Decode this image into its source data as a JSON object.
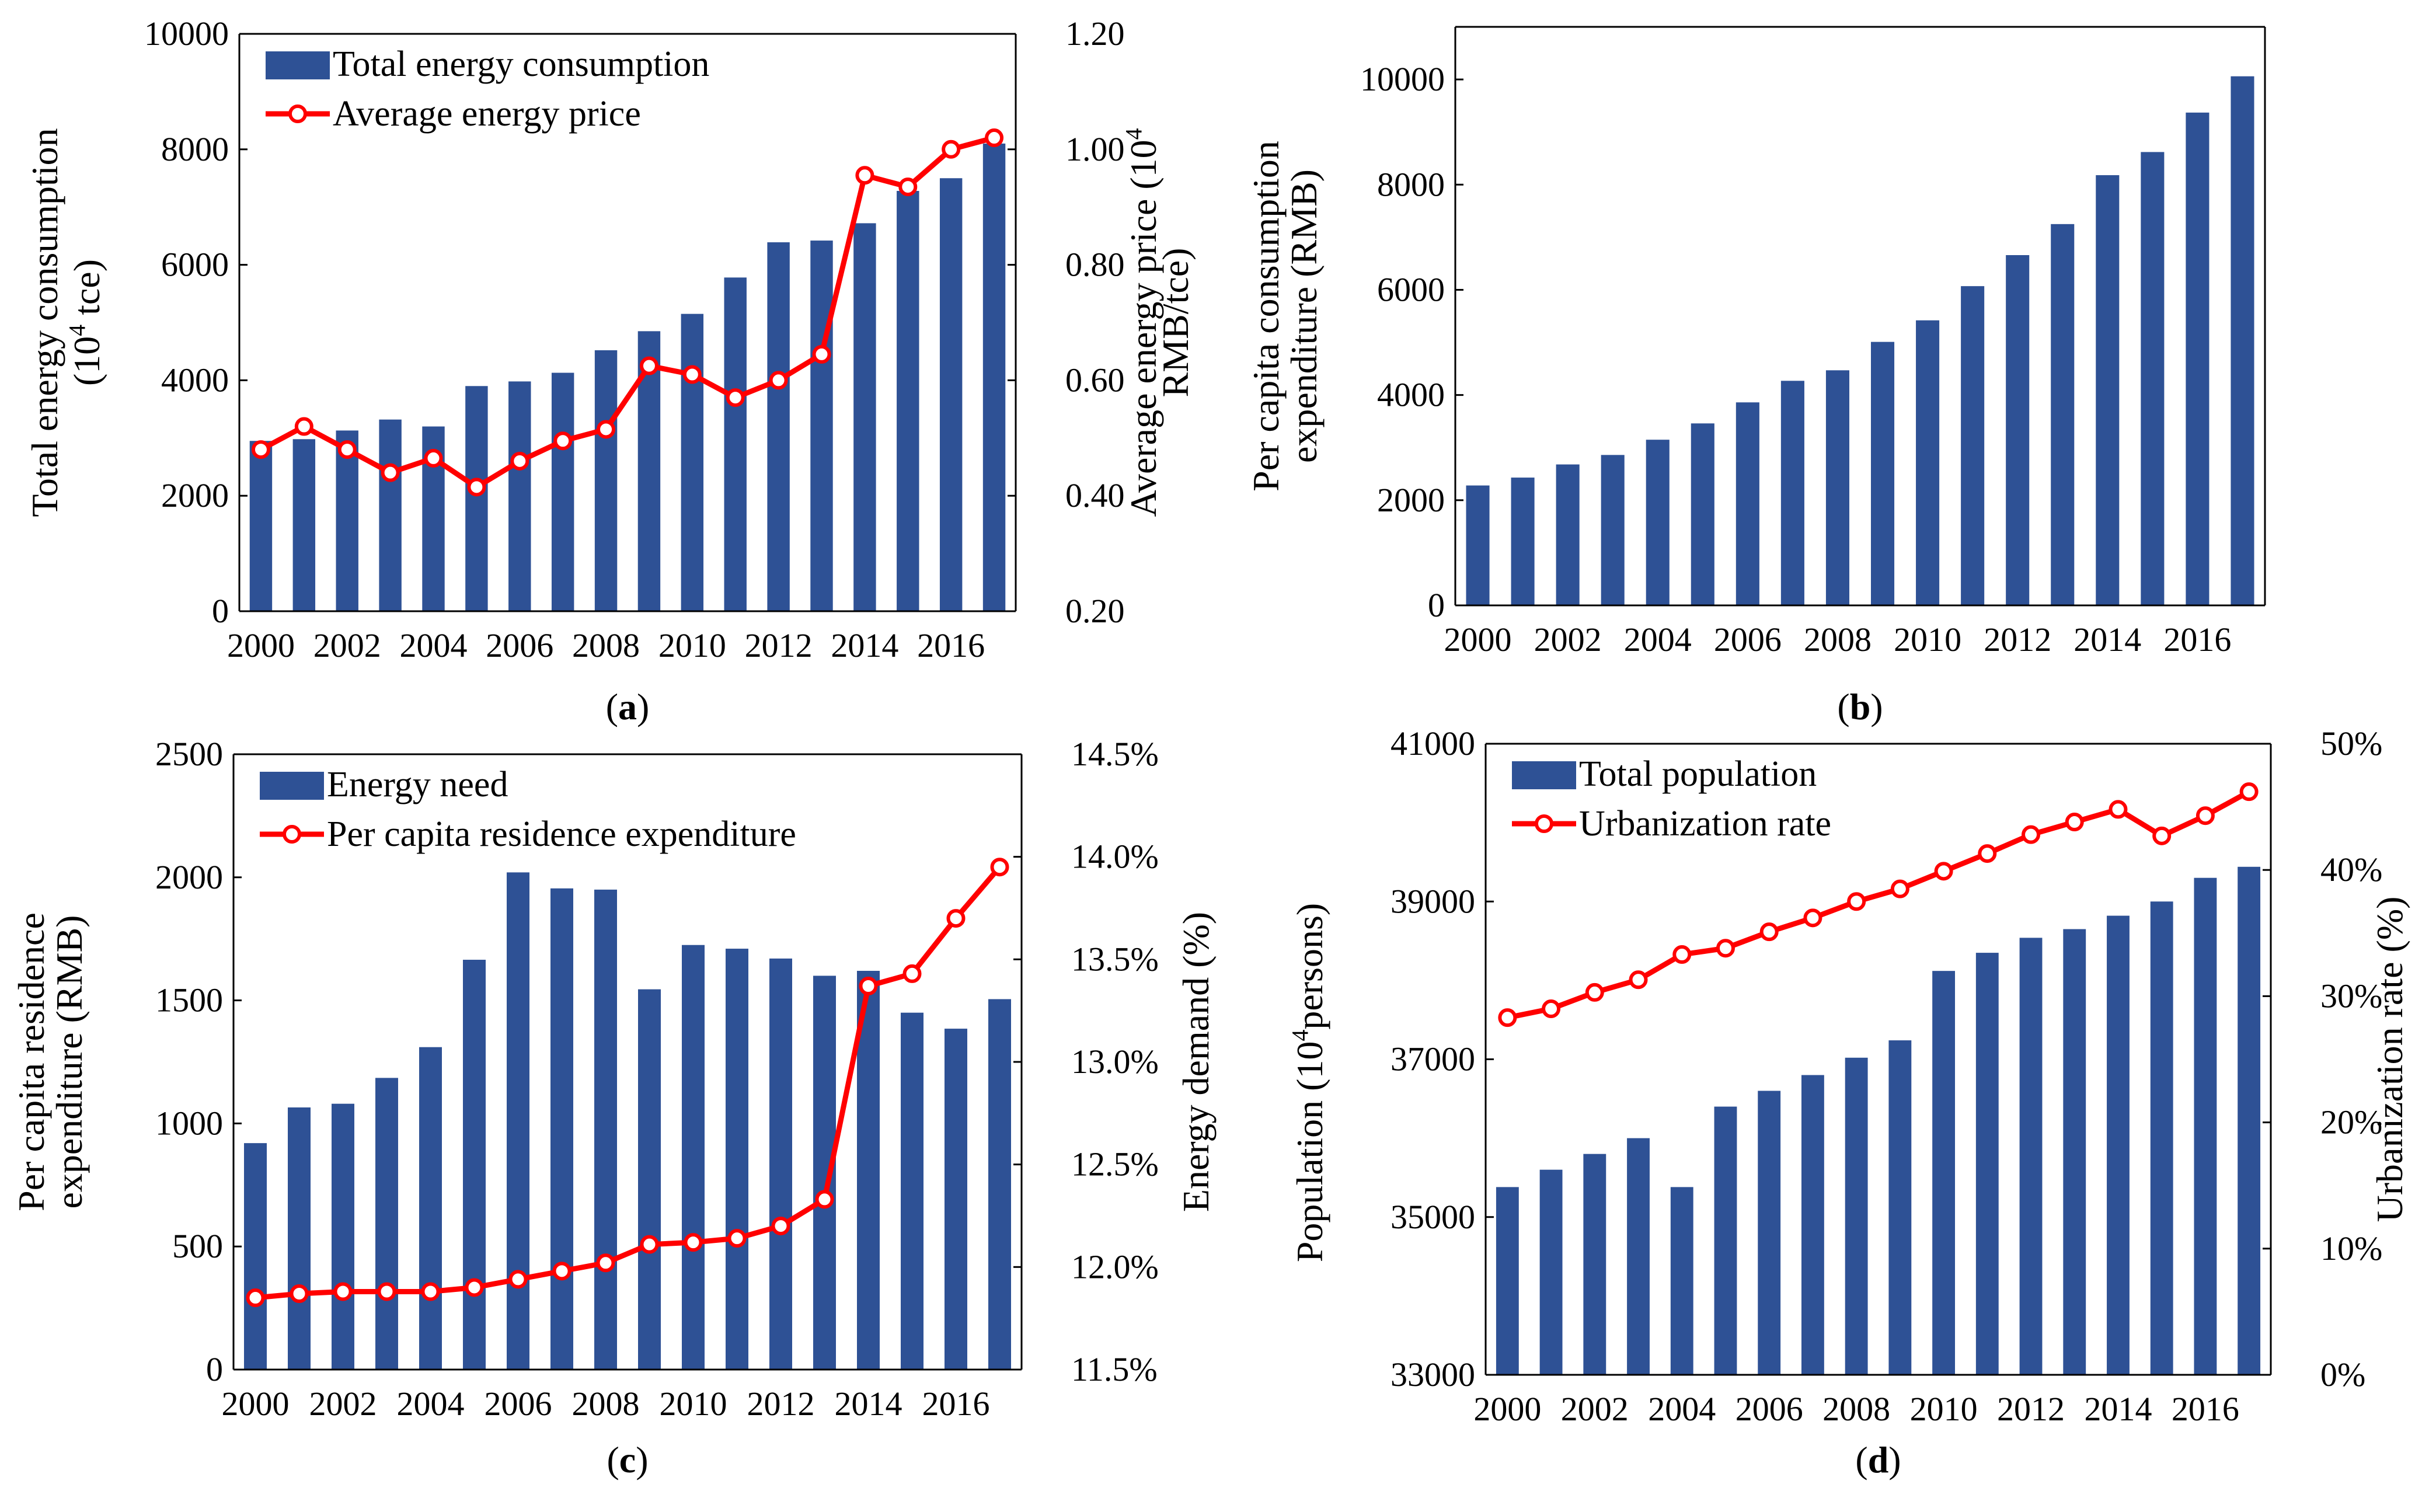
{
  "colors": {
    "bar": "#2E5195",
    "line": "#FF0000",
    "marker_fill": "#FFFFFF",
    "axis": "#000000"
  },
  "chart_data": [
    {
      "id": "a",
      "type": "bar+line",
      "caption_letter": "a",
      "x": [
        "2000",
        "2001",
        "2002",
        "2003",
        "2004",
        "2005",
        "2006",
        "2007",
        "2008",
        "2009",
        "2010",
        "2011",
        "2012",
        "2013",
        "2014",
        "2015",
        "2016",
        "2017"
      ],
      "xticks": [
        "2000",
        "2002",
        "2004",
        "2006",
        "2008",
        "2010",
        "2012",
        "2014",
        "2016"
      ],
      "bar_series": {
        "name": "Total energy consumption",
        "values": [
          2950,
          2980,
          3130,
          3320,
          3200,
          3900,
          3980,
          4130,
          4520,
          4850,
          5150,
          5780,
          6390,
          6420,
          6720,
          7280,
          7500,
          8100
        ]
      },
      "line_series": {
        "name": "Average energy price",
        "values": [
          0.48,
          0.52,
          0.48,
          0.44,
          0.465,
          0.415,
          0.46,
          0.495,
          0.515,
          0.625,
          0.61,
          0.57,
          0.6,
          0.645,
          0.955,
          0.935,
          1.0,
          1.02
        ]
      },
      "ylabel_left": [
        "Total energy consumption",
        "(10",
        "4",
        " tce)"
      ],
      "ylabel_right": [
        "Average energy price (10",
        "4",
        "RMB/tce)"
      ],
      "yleft": {
        "min": 0,
        "max": 10000,
        "ticks": [
          "0",
          "2000",
          "4000",
          "6000",
          "8000",
          "10000"
        ]
      },
      "yright": {
        "min": 0.2,
        "max": 1.2,
        "ticks": [
          "0.20",
          "0.40",
          "0.60",
          "0.80",
          "1.00",
          "1.20"
        ]
      },
      "legend_position": "top-left"
    },
    {
      "id": "b",
      "type": "bar",
      "caption_letter": "b",
      "x": [
        "2000",
        "2001",
        "2002",
        "2003",
        "2004",
        "2005",
        "2006",
        "2007",
        "2008",
        "2009",
        "2010",
        "2011",
        "2012",
        "2013",
        "2014",
        "2015",
        "2016",
        "2017"
      ],
      "xticks": [
        "2000",
        "2002",
        "2004",
        "2006",
        "2008",
        "2010",
        "2012",
        "2014",
        "2016"
      ],
      "bar_series": {
        "name": "Per capita consumption expenditure",
        "values": [
          2280,
          2430,
          2680,
          2860,
          3150,
          3460,
          3860,
          4270,
          4470,
          5010,
          5420,
          6070,
          6660,
          7250,
          8180,
          8620,
          9370,
          10060
        ]
      },
      "ylabel_left": [
        "Per capita consumption",
        "expenditure (RMB)"
      ],
      "yleft": {
        "min": 0,
        "max": 11000,
        "ticks": [
          "0",
          "2000",
          "4000",
          "6000",
          "8000",
          "10000"
        ]
      },
      "legend_position": "none"
    },
    {
      "id": "c",
      "type": "bar+line",
      "caption_letter": "c",
      "x": [
        "2000",
        "2001",
        "2002",
        "2003",
        "2004",
        "2005",
        "2006",
        "2007",
        "2008",
        "2009",
        "2010",
        "2011",
        "2012",
        "2013",
        "2014",
        "2015",
        "2016",
        "2017"
      ],
      "xticks": [
        "2000",
        "2002",
        "2004",
        "2006",
        "2008",
        "2010",
        "2012",
        "2014",
        "2016"
      ],
      "bar_series": {
        "name": "Energy need",
        "values": [
          920,
          1065,
          1080,
          1185,
          1310,
          1665,
          2020,
          1955,
          1950,
          1545,
          1725,
          1710,
          1670,
          1600,
          1620,
          1450,
          1385,
          1505
        ]
      },
      "line_series": {
        "name": "Per capita residence  expenditure",
        "values": [
          11.85,
          11.87,
          11.88,
          11.88,
          11.88,
          11.9,
          11.94,
          11.98,
          12.02,
          12.11,
          12.12,
          12.14,
          12.2,
          12.33,
          13.37,
          13.43,
          13.7,
          13.95
        ]
      },
      "ylabel_left": [
        "Per capita residence",
        "expenditure (RMB)"
      ],
      "ylabel_right": [
        "Energy demand (%)"
      ],
      "yleft": {
        "min": 0,
        "max": 2500,
        "ticks": [
          "0",
          "500",
          "1000",
          "1500",
          "2000",
          "2500"
        ]
      },
      "yright": {
        "min": 11.5,
        "max": 14.5,
        "ticks": [
          "11.5%",
          "12.0%",
          "12.5%",
          "13.0%",
          "13.5%",
          "14.0%",
          "14.5%"
        ]
      },
      "legend_position": "top-left"
    },
    {
      "id": "d",
      "type": "bar+line",
      "caption_letter": "d",
      "x": [
        "2000",
        "2001",
        "2002",
        "2003",
        "2004",
        "2005",
        "2006",
        "2007",
        "2008",
        "2009",
        "2010",
        "2011",
        "2012",
        "2013",
        "2014",
        "2015",
        "2016",
        "2017"
      ],
      "xticks": [
        "2000",
        "2002",
        "2004",
        "2006",
        "2008",
        "2010",
        "2012",
        "2014",
        "2016"
      ],
      "bar_series": {
        "name": "Total population",
        "values": [
          35380,
          35600,
          35800,
          36000,
          35380,
          36400,
          36600,
          36800,
          37020,
          37240,
          38120,
          38350,
          38540,
          38650,
          38820,
          39000,
          39300,
          39440
        ]
      },
      "line_series": {
        "name": "Urbanization rate",
        "values": [
          28.3,
          29.0,
          30.3,
          31.3,
          33.3,
          33.8,
          35.1,
          36.2,
          37.5,
          38.5,
          39.9,
          41.3,
          42.8,
          43.8,
          44.8,
          42.7,
          44.3,
          46.2
        ]
      },
      "ylabel_left": [
        "Population (10",
        "4",
        "persons)"
      ],
      "ylabel_right": [
        "Urbanization rate (%)"
      ],
      "yleft": {
        "min": 33000,
        "max": 41000,
        "ticks": [
          "33000",
          "35000",
          "37000",
          "39000",
          "41000"
        ]
      },
      "yright": {
        "min": 0,
        "max": 50,
        "ticks": [
          "0%",
          "10%",
          "20%",
          "30%",
          "40%",
          "50%"
        ]
      },
      "legend_position": "top-left"
    }
  ]
}
